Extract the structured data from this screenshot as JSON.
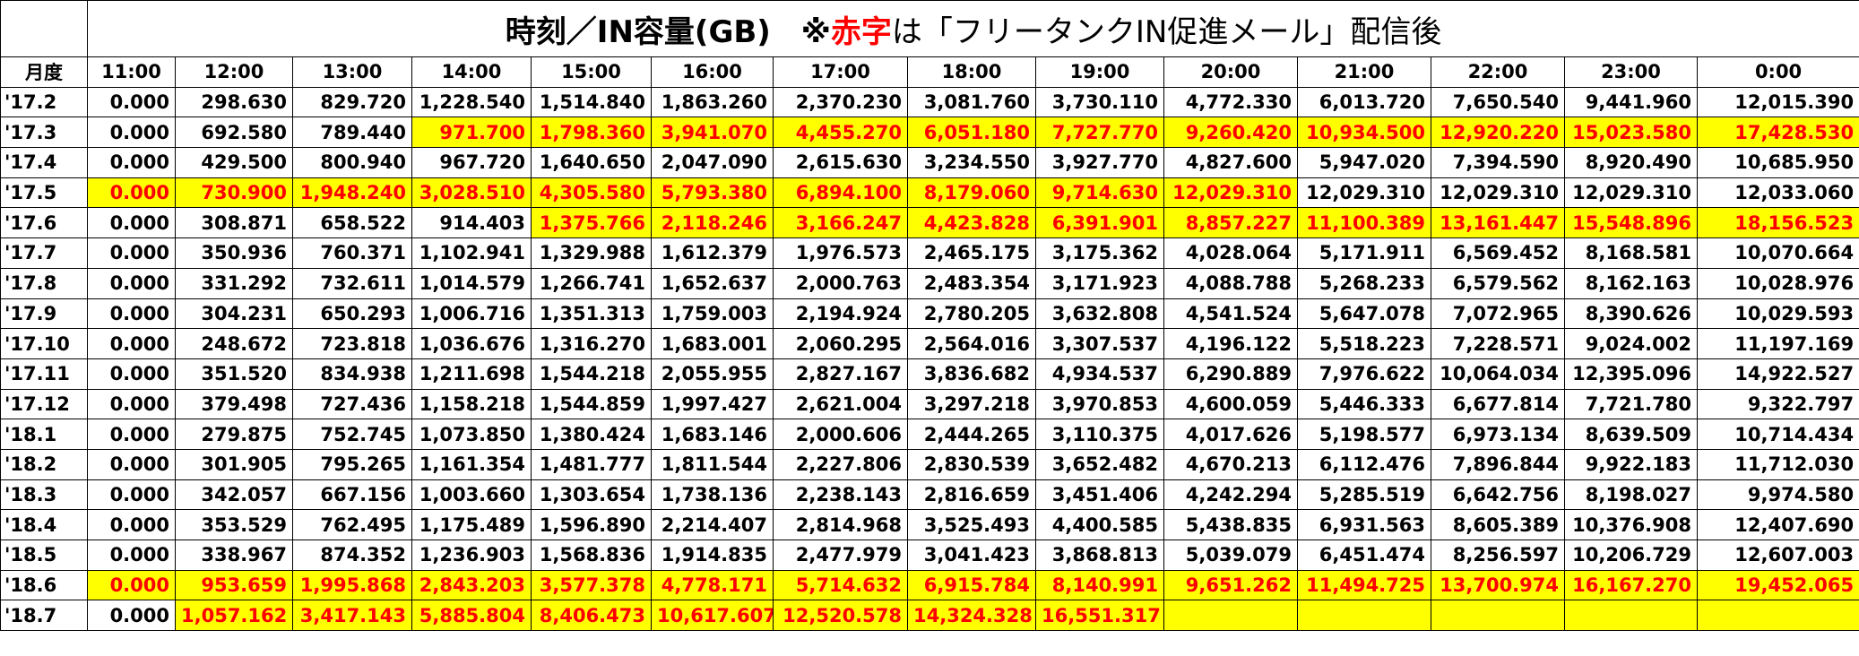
{
  "colors": {
    "highlight_background": "#ffff00",
    "highlight_text": "#ff0000",
    "grid_line": "#000000"
  },
  "title": {
    "main": "時刻／IN容量(GB)　※",
    "red": "赤字",
    "rest": "は「フリータンクIN促進メール」配信後"
  },
  "header": {
    "corner": "月度",
    "hours": [
      "11:00",
      "12:00",
      "13:00",
      "14:00",
      "15:00",
      "16:00",
      "17:00",
      "18:00",
      "19:00",
      "20:00",
      "21:00",
      "22:00",
      "23:00",
      "0:00"
    ]
  },
  "rows": [
    {
      "label": "'17.2",
      "values": [
        "0.000",
        "298.630",
        "829.720",
        "1,228.540",
        "1,514.840",
        "1,863.260",
        "2,370.230",
        "3,081.760",
        "3,730.110",
        "4,772.330",
        "6,013.720",
        "7,650.540",
        "9,441.960",
        "12,015.390"
      ],
      "highlight": [
        false,
        false,
        false,
        false,
        false,
        false,
        false,
        false,
        false,
        false,
        false,
        false,
        false,
        false
      ]
    },
    {
      "label": "'17.3",
      "values": [
        "0.000",
        "692.580",
        "789.440",
        "971.700",
        "1,798.360",
        "3,941.070",
        "4,455.270",
        "6,051.180",
        "7,727.770",
        "9,260.420",
        "10,934.500",
        "12,920.220",
        "15,023.580",
        "17,428.530"
      ],
      "highlight": [
        false,
        false,
        false,
        true,
        true,
        true,
        true,
        true,
        true,
        true,
        true,
        true,
        true,
        true
      ]
    },
    {
      "label": "'17.4",
      "values": [
        "0.000",
        "429.500",
        "800.940",
        "967.720",
        "1,640.650",
        "2,047.090",
        "2,615.630",
        "3,234.550",
        "3,927.770",
        "4,827.600",
        "5,947.020",
        "7,394.590",
        "8,920.490",
        "10,685.950"
      ],
      "highlight": [
        false,
        false,
        false,
        false,
        false,
        false,
        false,
        false,
        false,
        false,
        false,
        false,
        false,
        false
      ]
    },
    {
      "label": "'17.5",
      "values": [
        "0.000",
        "730.900",
        "1,948.240",
        "3,028.510",
        "4,305.580",
        "5,793.380",
        "6,894.100",
        "8,179.060",
        "9,714.630",
        "12,029.310",
        "12,029.310",
        "12,029.310",
        "12,029.310",
        "12,033.060"
      ],
      "highlight": [
        true,
        true,
        true,
        true,
        true,
        true,
        true,
        true,
        true,
        true,
        false,
        false,
        false,
        false
      ]
    },
    {
      "label": "'17.6",
      "values": [
        "0.000",
        "308.871",
        "658.522",
        "914.403",
        "1,375.766",
        "2,118.246",
        "3,166.247",
        "4,423.828",
        "6,391.901",
        "8,857.227",
        "11,100.389",
        "13,161.447",
        "15,548.896",
        "18,156.523"
      ],
      "highlight": [
        false,
        false,
        false,
        false,
        true,
        true,
        true,
        true,
        true,
        true,
        true,
        true,
        true,
        true
      ]
    },
    {
      "label": "'17.7",
      "values": [
        "0.000",
        "350.936",
        "760.371",
        "1,102.941",
        "1,329.988",
        "1,612.379",
        "1,976.573",
        "2,465.175",
        "3,175.362",
        "4,028.064",
        "5,171.911",
        "6,569.452",
        "8,168.581",
        "10,070.664"
      ],
      "highlight": [
        false,
        false,
        false,
        false,
        false,
        false,
        false,
        false,
        false,
        false,
        false,
        false,
        false,
        false
      ]
    },
    {
      "label": "'17.8",
      "values": [
        "0.000",
        "331.292",
        "732.611",
        "1,014.579",
        "1,266.741",
        "1,652.637",
        "2,000.763",
        "2,483.354",
        "3,171.923",
        "4,088.788",
        "5,268.233",
        "6,579.562",
        "8,162.163",
        "10,028.976"
      ],
      "highlight": [
        false,
        false,
        false,
        false,
        false,
        false,
        false,
        false,
        false,
        false,
        false,
        false,
        false,
        false
      ]
    },
    {
      "label": "'17.9",
      "values": [
        "0.000",
        "304.231",
        "650.293",
        "1,006.716",
        "1,351.313",
        "1,759.003",
        "2,194.924",
        "2,780.205",
        "3,632.808",
        "4,541.524",
        "5,647.078",
        "7,072.965",
        "8,390.626",
        "10,029.593"
      ],
      "highlight": [
        false,
        false,
        false,
        false,
        false,
        false,
        false,
        false,
        false,
        false,
        false,
        false,
        false,
        false
      ]
    },
    {
      "label": "'17.10",
      "values": [
        "0.000",
        "248.672",
        "723.818",
        "1,036.676",
        "1,316.270",
        "1,683.001",
        "2,060.295",
        "2,564.016",
        "3,307.537",
        "4,196.122",
        "5,518.223",
        "7,228.571",
        "9,024.002",
        "11,197.169"
      ],
      "highlight": [
        false,
        false,
        false,
        false,
        false,
        false,
        false,
        false,
        false,
        false,
        false,
        false,
        false,
        false
      ]
    },
    {
      "label": "'17.11",
      "values": [
        "0.000",
        "351.520",
        "834.938",
        "1,211.698",
        "1,544.218",
        "2,055.955",
        "2,827.167",
        "3,836.682",
        "4,934.537",
        "6,290.889",
        "7,976.622",
        "10,064.034",
        "12,395.096",
        "14,922.527"
      ],
      "highlight": [
        false,
        false,
        false,
        false,
        false,
        false,
        false,
        false,
        false,
        false,
        false,
        false,
        false,
        false
      ]
    },
    {
      "label": "'17.12",
      "values": [
        "0.000",
        "379.498",
        "727.436",
        "1,158.218",
        "1,544.859",
        "1,997.427",
        "2,621.004",
        "3,297.218",
        "3,970.853",
        "4,600.059",
        "5,446.333",
        "6,677.814",
        "7,721.780",
        "9,322.797"
      ],
      "highlight": [
        false,
        false,
        false,
        false,
        false,
        false,
        false,
        false,
        false,
        false,
        false,
        false,
        false,
        false
      ]
    },
    {
      "label": "'18.1",
      "values": [
        "0.000",
        "279.875",
        "752.745",
        "1,073.850",
        "1,380.424",
        "1,683.146",
        "2,000.606",
        "2,444.265",
        "3,110.375",
        "4,017.626",
        "5,198.577",
        "6,973.134",
        "8,639.509",
        "10,714.434"
      ],
      "highlight": [
        false,
        false,
        false,
        false,
        false,
        false,
        false,
        false,
        false,
        false,
        false,
        false,
        false,
        false
      ]
    },
    {
      "label": "'18.2",
      "values": [
        "0.000",
        "301.905",
        "795.265",
        "1,161.354",
        "1,481.777",
        "1,811.544",
        "2,227.806",
        "2,830.539",
        "3,652.482",
        "4,670.213",
        "6,112.476",
        "7,896.844",
        "9,922.183",
        "11,712.030"
      ],
      "highlight": [
        false,
        false,
        false,
        false,
        false,
        false,
        false,
        false,
        false,
        false,
        false,
        false,
        false,
        false
      ]
    },
    {
      "label": "'18.3",
      "values": [
        "0.000",
        "342.057",
        "667.156",
        "1,003.660",
        "1,303.654",
        "1,738.136",
        "2,238.143",
        "2,816.659",
        "3,451.406",
        "4,242.294",
        "5,285.519",
        "6,642.756",
        "8,198.027",
        "9,974.580"
      ],
      "highlight": [
        false,
        false,
        false,
        false,
        false,
        false,
        false,
        false,
        false,
        false,
        false,
        false,
        false,
        false
      ]
    },
    {
      "label": "'18.4",
      "values": [
        "0.000",
        "353.529",
        "762.495",
        "1,175.489",
        "1,596.890",
        "2,214.407",
        "2,814.968",
        "3,525.493",
        "4,400.585",
        "5,438.835",
        "6,931.563",
        "8,605.389",
        "10,376.908",
        "12,407.690"
      ],
      "highlight": [
        false,
        false,
        false,
        false,
        false,
        false,
        false,
        false,
        false,
        false,
        false,
        false,
        false,
        false
      ]
    },
    {
      "label": "'18.5",
      "values": [
        "0.000",
        "338.967",
        "874.352",
        "1,236.903",
        "1,568.836",
        "1,914.835",
        "2,477.979",
        "3,041.423",
        "3,868.813",
        "5,039.079",
        "6,451.474",
        "8,256.597",
        "10,206.729",
        "12,607.003"
      ],
      "highlight": [
        false,
        false,
        false,
        false,
        false,
        false,
        false,
        false,
        false,
        false,
        false,
        false,
        false,
        false
      ]
    },
    {
      "label": "'18.6",
      "values": [
        "0.000",
        "953.659",
        "1,995.868",
        "2,843.203",
        "3,577.378",
        "4,778.171",
        "5,714.632",
        "6,915.784",
        "8,140.991",
        "9,651.262",
        "11,494.725",
        "13,700.974",
        "16,167.270",
        "19,452.065"
      ],
      "highlight": [
        true,
        true,
        true,
        true,
        true,
        true,
        true,
        true,
        true,
        true,
        true,
        true,
        true,
        true
      ]
    },
    {
      "label": "'18.7",
      "values": [
        "0.000",
        "1,057.162",
        "3,417.143",
        "5,885.804",
        "8,406.473",
        "10,617.607",
        "12,520.578",
        "14,324.328",
        "16,551.317",
        "",
        "",
        "",
        "",
        ""
      ],
      "highlight": [
        false,
        true,
        true,
        true,
        true,
        true,
        true,
        true,
        true,
        true,
        true,
        true,
        true,
        true
      ]
    }
  ]
}
